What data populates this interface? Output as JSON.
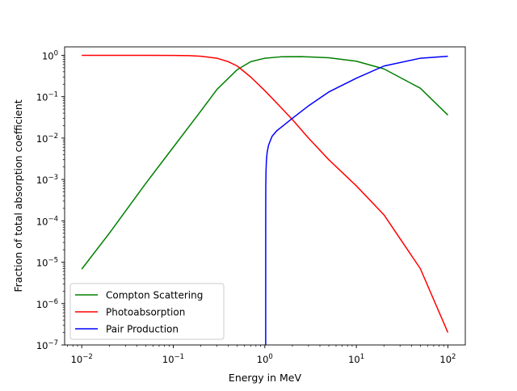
{
  "chart_data": {
    "type": "line",
    "title": "",
    "xlabel": "Energy in MeV",
    "ylabel": "Fraction of total absorption coefficient",
    "xscale": "log",
    "yscale": "log",
    "xlim": [
      0.0065,
      155
    ],
    "ylim": [
      1e-07,
      1.6
    ],
    "grid": false,
    "legend_position": "lower-left",
    "x_ticks": [
      {
        "value": 0.01,
        "base": "10",
        "exp": "−2"
      },
      {
        "value": 0.1,
        "base": "10",
        "exp": "−1"
      },
      {
        "value": 1,
        "base": "10",
        "exp": "0"
      },
      {
        "value": 10,
        "base": "10",
        "exp": "1"
      },
      {
        "value": 100,
        "base": "10",
        "exp": "2"
      }
    ],
    "y_ticks": [
      {
        "value": 1e-07,
        "base": "10",
        "exp": "−7"
      },
      {
        "value": 1e-06,
        "base": "10",
        "exp": "−6"
      },
      {
        "value": 1e-05,
        "base": "10",
        "exp": "−5"
      },
      {
        "value": 0.0001,
        "base": "10",
        "exp": "−4"
      },
      {
        "value": 0.001,
        "base": "10",
        "exp": "−3"
      },
      {
        "value": 0.01,
        "base": "10",
        "exp": "−2"
      },
      {
        "value": 0.1,
        "base": "10",
        "exp": "−1"
      },
      {
        "value": 1,
        "base": "10",
        "exp": "0"
      }
    ],
    "series": [
      {
        "name": "Compton Scattering",
        "color": "#008000",
        "x": [
          0.01,
          0.02,
          0.05,
          0.1,
          0.2,
          0.3,
          0.5,
          0.7,
          1,
          1.5,
          2.5,
          5,
          10,
          20,
          50,
          100
        ],
        "y": [
          6.8e-06,
          5e-05,
          0.0008,
          0.006,
          0.045,
          0.15,
          0.45,
          0.7,
          0.85,
          0.92,
          0.93,
          0.87,
          0.72,
          0.47,
          0.16,
          0.036
        ]
      },
      {
        "name": "Photoabsorption",
        "color": "#ff0000",
        "x": [
          0.01,
          0.05,
          0.1,
          0.15,
          0.2,
          0.3,
          0.4,
          0.5,
          0.7,
          1,
          1.5,
          2,
          3,
          5,
          10,
          20,
          50,
          100
        ],
        "y": [
          1.0,
          1.0,
          0.99,
          0.98,
          0.95,
          0.85,
          0.7,
          0.55,
          0.3,
          0.14,
          0.055,
          0.028,
          0.01,
          0.003,
          0.0007,
          0.00014,
          7e-06,
          2e-07
        ]
      },
      {
        "name": "Pair Production",
        "color": "#0000ff",
        "x": [
          1.022,
          1.023,
          1.025,
          1.03,
          1.04,
          1.06,
          1.1,
          1.2,
          1.35,
          1.5,
          2,
          3,
          5,
          10,
          20,
          50,
          100
        ],
        "y": [
          1e-07,
          0.0002,
          0.0007,
          0.0015,
          0.0028,
          0.0045,
          0.0068,
          0.011,
          0.015,
          0.018,
          0.03,
          0.06,
          0.13,
          0.28,
          0.55,
          0.85,
          0.95
        ]
      }
    ]
  }
}
